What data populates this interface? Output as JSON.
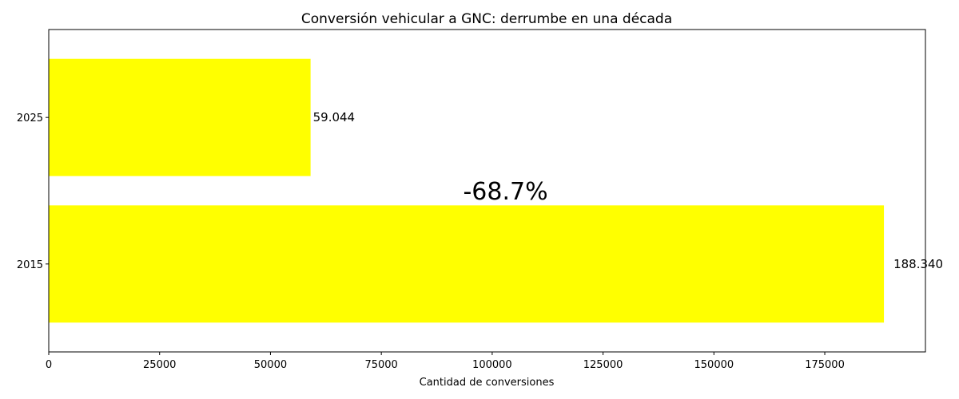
{
  "chart_data": {
    "type": "bar",
    "orientation": "horizontal",
    "title": "Conversión vehicular a GNC: derrumbe en una década",
    "xlabel": "Cantidad de conversiones",
    "ylabel": "",
    "categories": [
      "2015",
      "2025"
    ],
    "values": [
      188340,
      59044
    ],
    "data_labels": [
      "188.340",
      "59.044"
    ],
    "xlim": [
      0,
      197700
    ],
    "xticks": [
      0,
      25000,
      50000,
      75000,
      100000,
      125000,
      150000,
      175000
    ],
    "xtick_labels": [
      "0",
      "25000",
      "50000",
      "75000",
      "100000",
      "125000",
      "150000",
      "175000"
    ],
    "annotation": {
      "text": "-68.7%",
      "x": 103000,
      "y": 0.5
    },
    "bar_color": "#ffff00",
    "grid": false,
    "legend": "none"
  }
}
